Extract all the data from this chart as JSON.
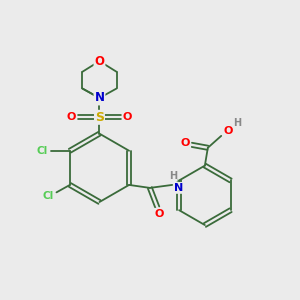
{
  "bg_color": "#ebebeb",
  "bond_color": "#3a6b3a",
  "atom_colors": {
    "O": "#ff0000",
    "N": "#0000cc",
    "S": "#ccaa00",
    "Cl": "#55cc55",
    "H": "#888888",
    "C": "#3a6b3a"
  },
  "figsize": [
    3.0,
    3.0
  ],
  "dpi": 100
}
